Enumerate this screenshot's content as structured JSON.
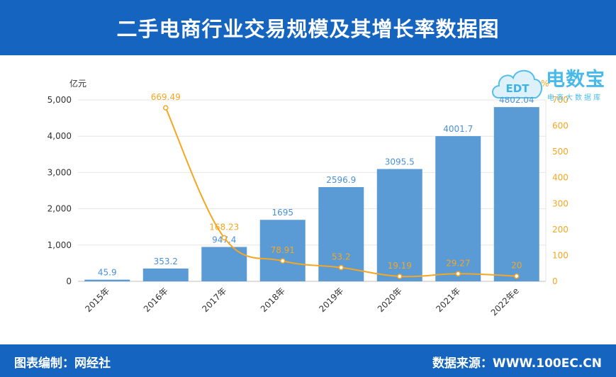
{
  "header": {
    "title": "二手电商行业交易规模及其增长率数据图"
  },
  "footer": {
    "credit": "图表编制：网经社",
    "source": "数据来源：WWW.100EC.CN"
  },
  "watermark": {
    "brand": "电数宝",
    "tagline": "电商大数据库",
    "logo_text": "EDT"
  },
  "colors": {
    "header_bg": "#1565c0",
    "bar": "#5b9bd5",
    "line": "#f5a623",
    "bar_label": "#4a90d9",
    "line_label": "#f5a623"
  },
  "chart_data": {
    "type": "bar",
    "categories": [
      "2015年",
      "2016年",
      "2017年",
      "2018年",
      "2019年",
      "2020年",
      "2021年",
      "2022年e"
    ],
    "series": [
      {
        "type": "bar",
        "axis": "left",
        "values": [
          45.9,
          353.2,
          947.4,
          1695,
          2596.9,
          3095.5,
          4001.7,
          4802.04
        ],
        "labels": [
          "45.9",
          "353.2",
          "947.4",
          "1695",
          "2596.9",
          "3095.5",
          "4001.7",
          "4802.04"
        ]
      },
      {
        "type": "line",
        "axis": "right",
        "values": [
          null,
          669.49,
          168.23,
          78.91,
          53.2,
          19.19,
          29.27,
          20
        ],
        "labels": [
          "",
          "669.49",
          "168.23",
          "78.91",
          "53.2",
          "19.19",
          "29.27",
          "20"
        ]
      }
    ],
    "ylabel_left": "亿元",
    "ylabel_right": "%",
    "ylim_left": [
      0,
      5000
    ],
    "ylim_right": [
      0,
      700
    ],
    "yticks_left": [
      "0",
      "1,000",
      "2,000",
      "3,000",
      "4,000",
      "5,000"
    ],
    "yticks_right": [
      "0",
      "100",
      "200",
      "300",
      "400",
      "500",
      "600",
      "700"
    ],
    "grid": true
  }
}
